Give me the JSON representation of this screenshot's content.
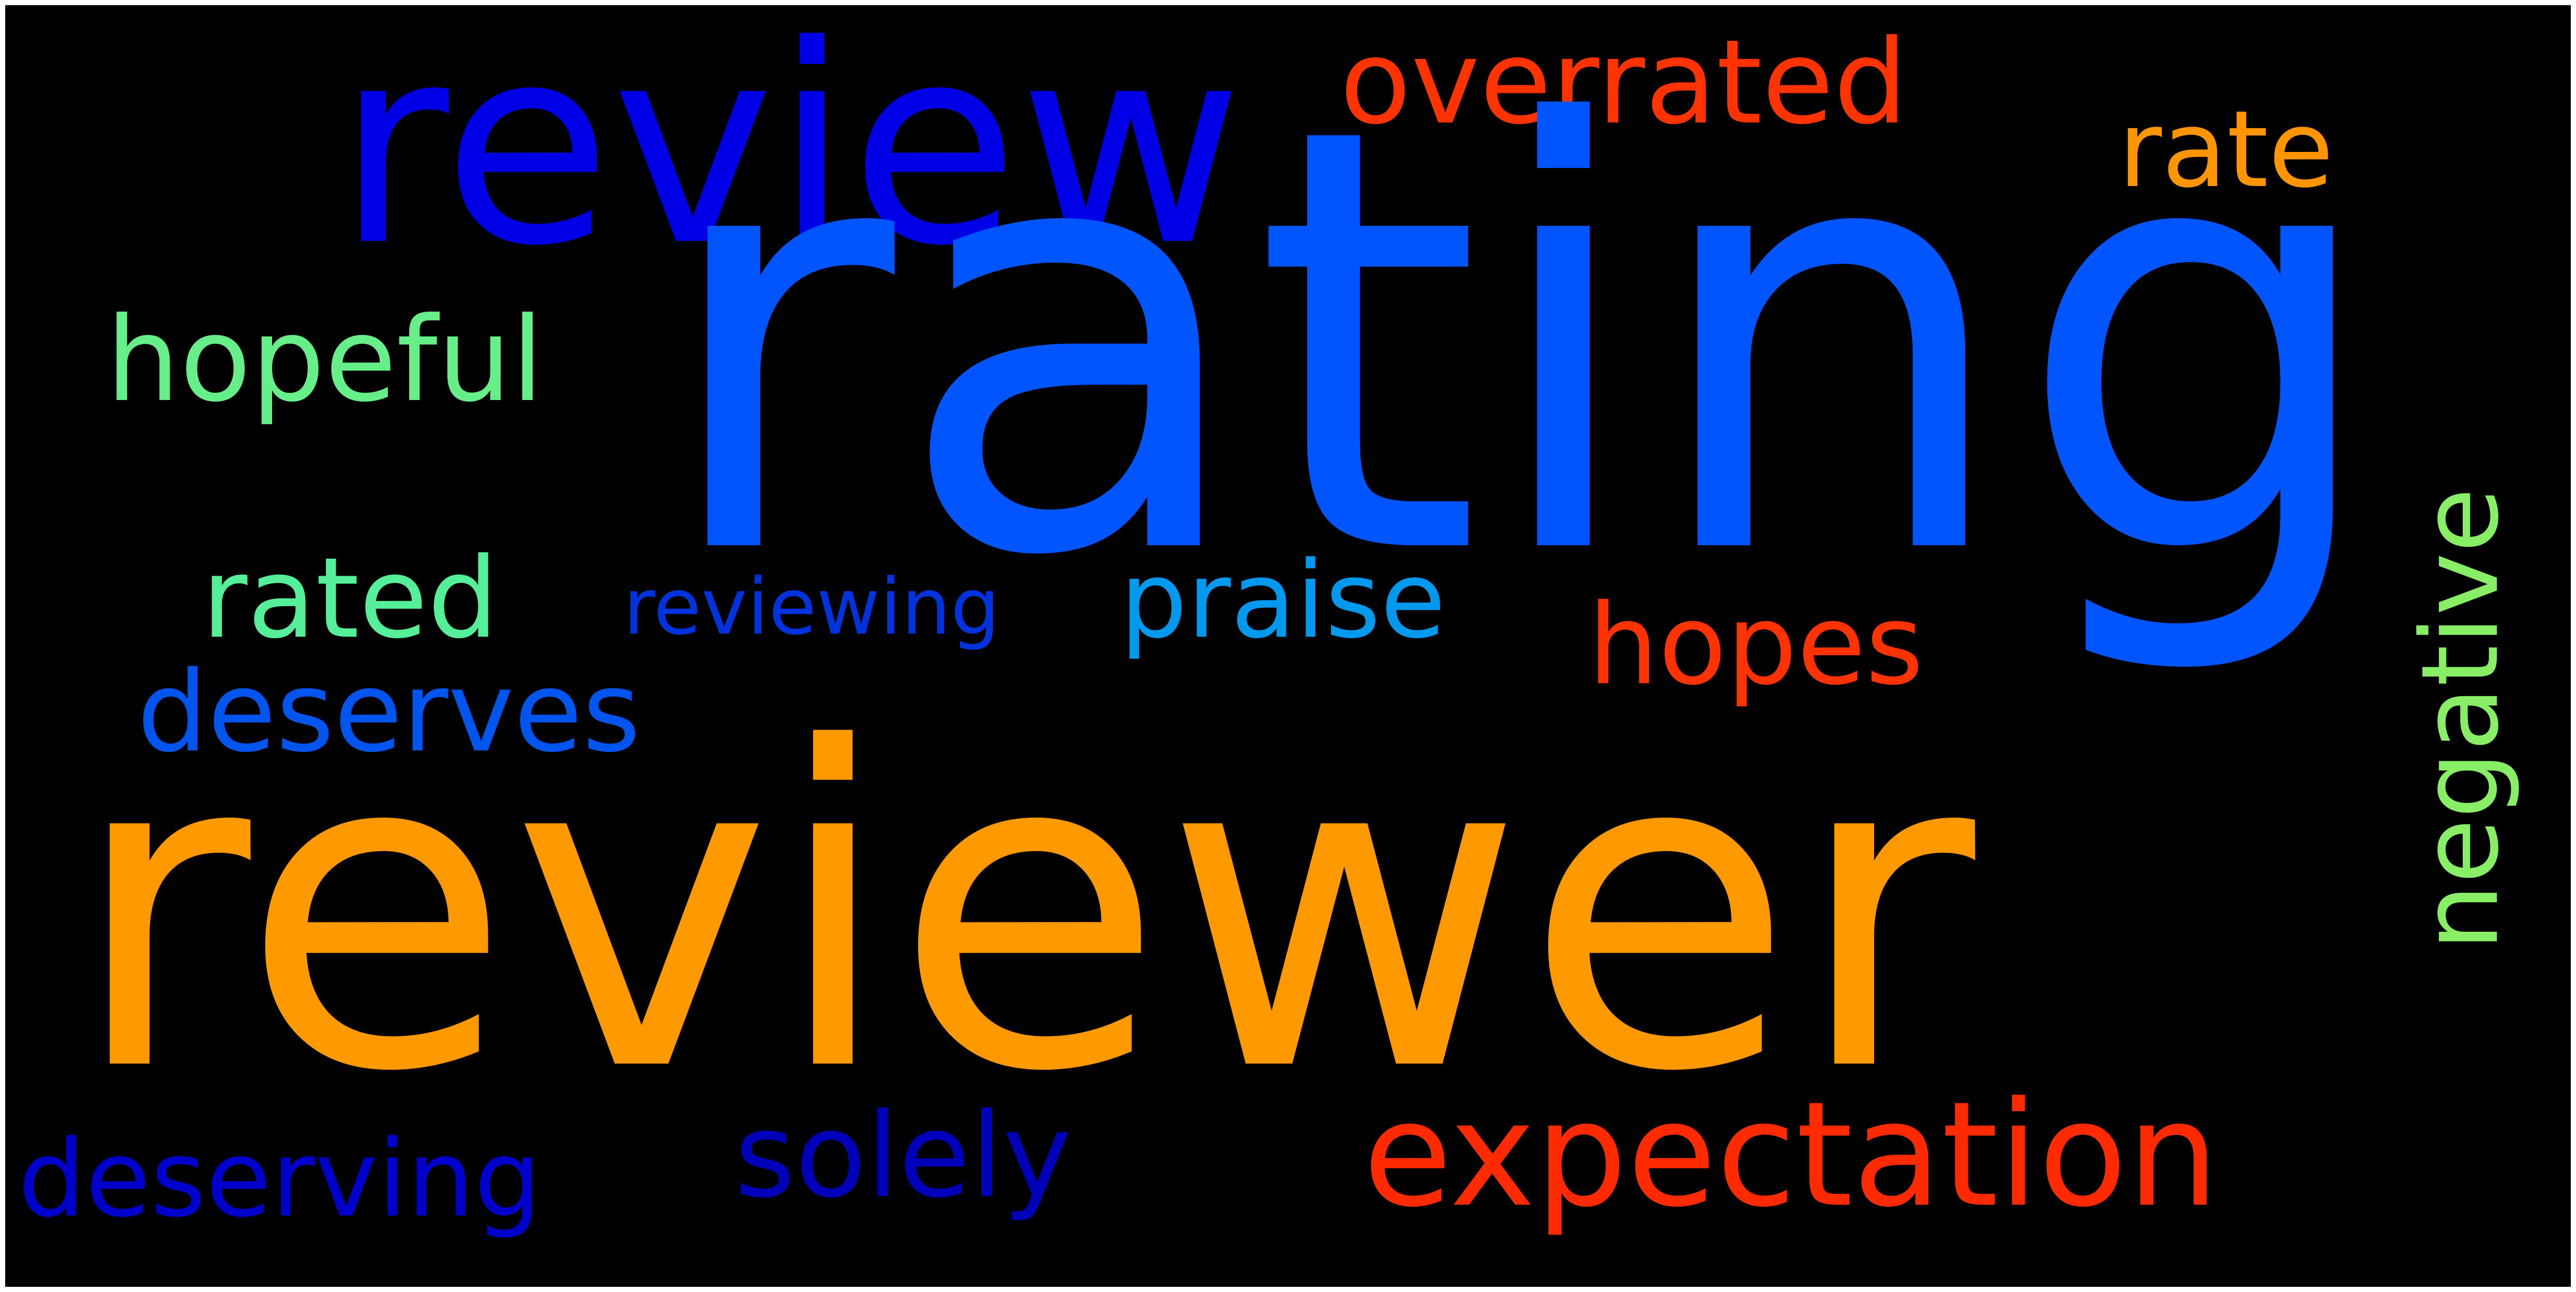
{
  "word_cloud": {
    "background_color": "#000000",
    "words": [
      {
        "text": "rating",
        "color": "#0055ff"
      },
      {
        "text": "reviewer",
        "color": "#ff9900"
      },
      {
        "text": "review",
        "color": "#0000e6"
      },
      {
        "text": "expectation",
        "color": "#ff2a00"
      },
      {
        "text": "overrated",
        "color": "#ff3300"
      },
      {
        "text": "rate",
        "color": "#ff9500"
      },
      {
        "text": "hopeful",
        "color": "#66ee88"
      },
      {
        "text": "negative",
        "color": "#88ee66"
      },
      {
        "text": "rated",
        "color": "#55ee99"
      },
      {
        "text": "reviewing",
        "color": "#0033dd"
      },
      {
        "text": "praise",
        "color": "#0099ee"
      },
      {
        "text": "hopes",
        "color": "#ff3300"
      },
      {
        "text": "deserves",
        "color": "#0055ee"
      },
      {
        "text": "deserving",
        "color": "#0000cc"
      },
      {
        "text": "solely",
        "color": "#0000bb"
      }
    ]
  }
}
